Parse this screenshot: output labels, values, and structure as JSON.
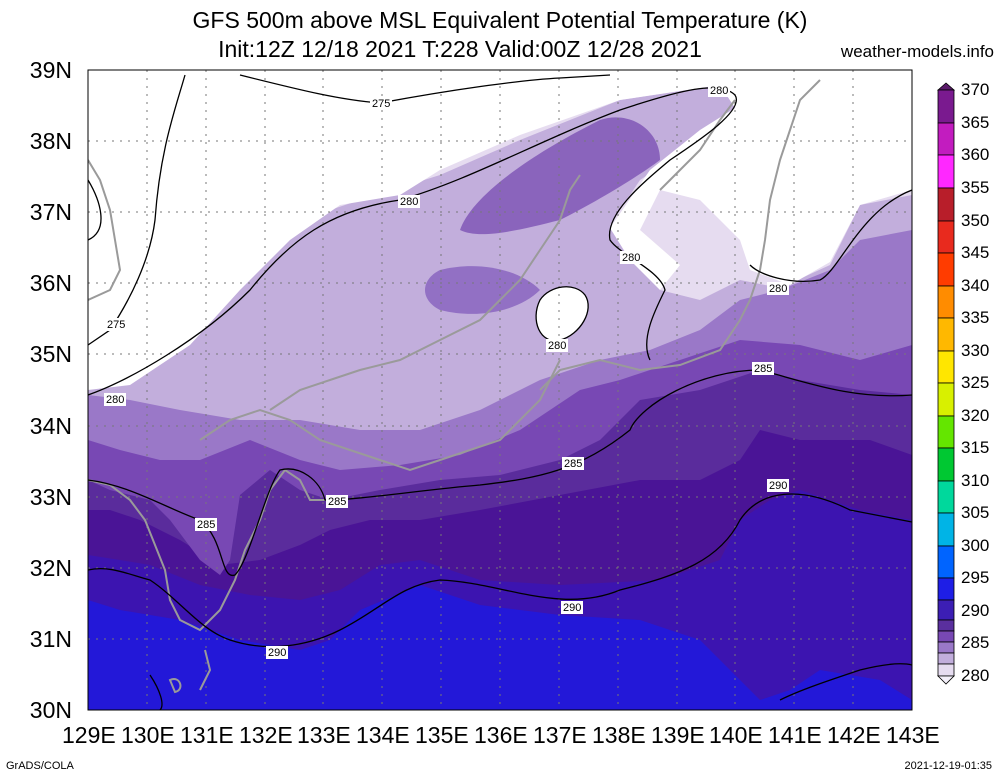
{
  "header": {
    "title_line1": "GFS 500m above MSL Equivalent Potential Temperature (K)",
    "title_line2": "Init:12Z 12/18 2021 T:228 Valid:00Z 12/28 2021",
    "source": "weather-models.info"
  },
  "axes": {
    "lat_labels": [
      "39N",
      "38N",
      "37N",
      "36N",
      "35N",
      "34N",
      "33N",
      "32N",
      "31N",
      "30N"
    ],
    "lon_labels": [
      "129E",
      "130E",
      "131E",
      "132E",
      "133E",
      "134E",
      "135E",
      "136E",
      "137E",
      "138E",
      "139E",
      "140E",
      "141E",
      "142E",
      "143E"
    ]
  },
  "colorbar": {
    "labels": [
      "370",
      "365",
      "360",
      "355",
      "350",
      "345",
      "340",
      "335",
      "330",
      "325",
      "320",
      "315",
      "310",
      "305",
      "300",
      "295",
      "290",
      "285",
      "280"
    ],
    "colors": [
      "#7a1a8f",
      "#c21cbf",
      "#ff28ff",
      "#b81e2a",
      "#e82a1e",
      "#ff3c00",
      "#ff8c00",
      "#ffb800",
      "#ffe600",
      "#d8f000",
      "#64e600",
      "#00c832",
      "#00d89c",
      "#00b4e6",
      "#0064ff",
      "#1e1ee6",
      "#3c1eb4",
      "#4b1a96",
      "#5a2f9e",
      "#7848b4",
      "#9a78c8",
      "#c2aedc",
      "#e6dcf0"
    ]
  },
  "contour_labels": [
    "275",
    "275",
    "280",
    "280",
    "280",
    "280",
    "280",
    "280",
    "285",
    "285",
    "285",
    "285",
    "290",
    "290",
    "290"
  ],
  "footer": {
    "left": "GrADS/COLA",
    "right": "2021-12-19-01:35"
  }
}
